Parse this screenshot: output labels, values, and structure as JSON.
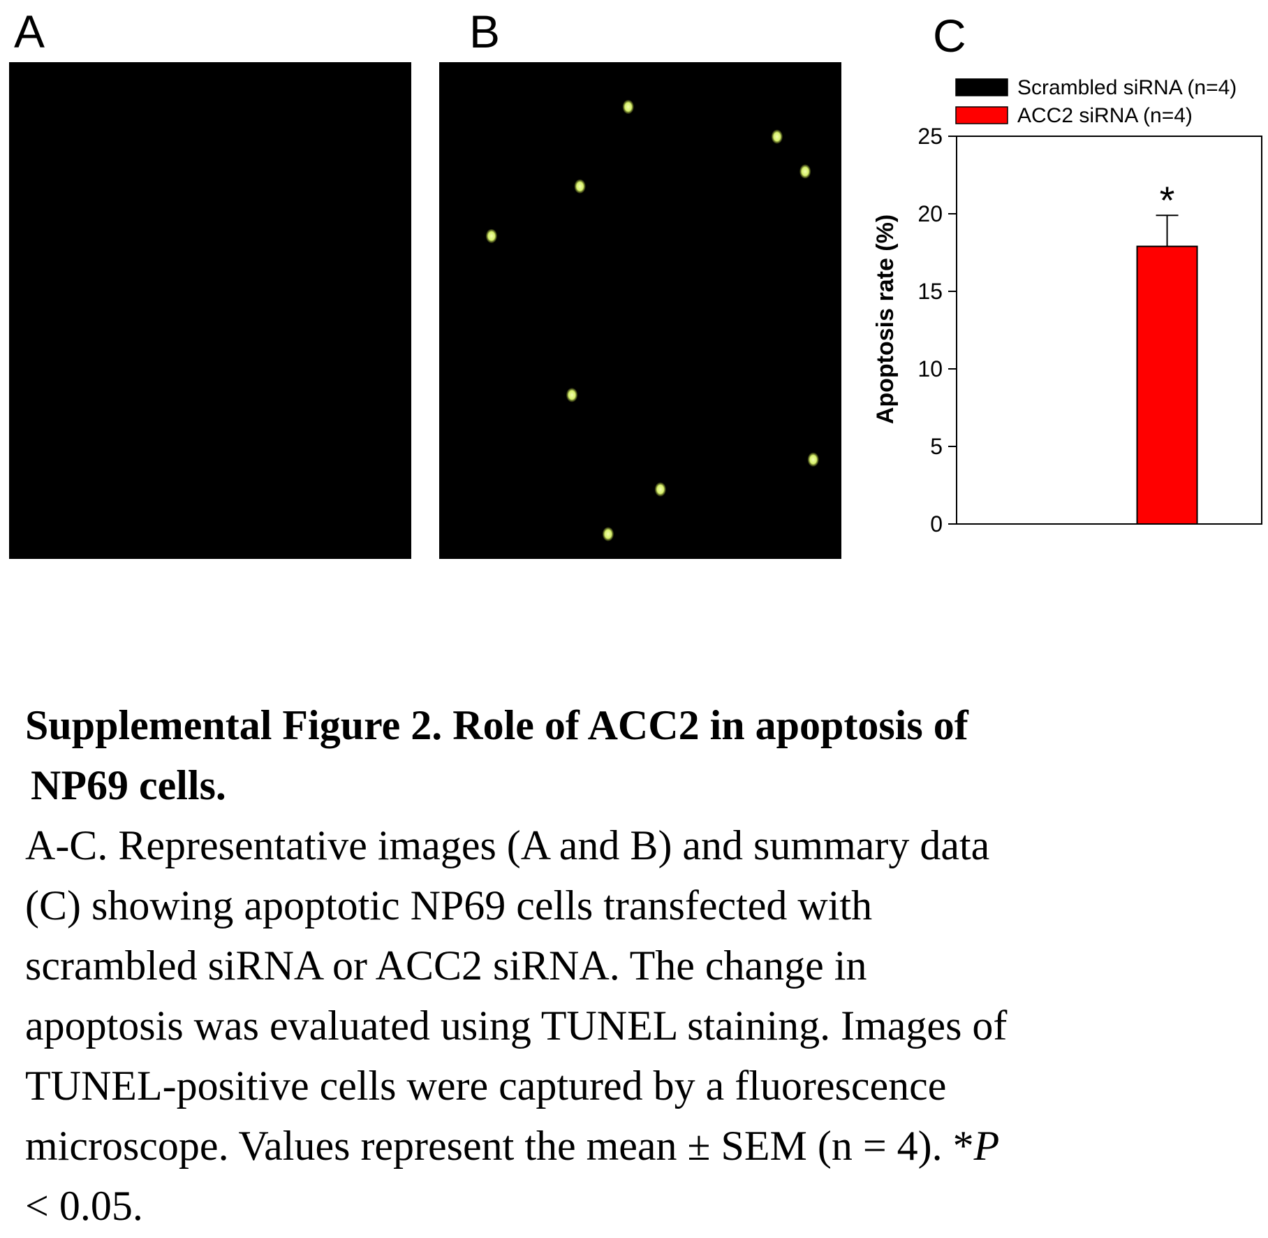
{
  "panels": {
    "a_label": "A",
    "b_label": "B",
    "c_label": "C"
  },
  "micrographs": {
    "a": {
      "description": "TUNEL-stained field, scrambled siRNA (no positive cells)",
      "positive_cells": []
    },
    "b": {
      "description": "TUNEL-stained field, ACC2 siRNA",
      "positive_cells": [
        {
          "fx": 0.47,
          "fy": 0.09
        },
        {
          "fx": 0.35,
          "fy": 0.25
        },
        {
          "fx": 0.13,
          "fy": 0.35
        },
        {
          "fx": 0.84,
          "fy": 0.15
        },
        {
          "fx": 0.91,
          "fy": 0.22
        },
        {
          "fx": 0.33,
          "fy": 0.67
        },
        {
          "fx": 0.55,
          "fy": 0.86
        },
        {
          "fx": 0.93,
          "fy": 0.8
        },
        {
          "fx": 0.42,
          "fy": 0.95
        }
      ],
      "cell_color": "#d6f06a"
    }
  },
  "chart_data": {
    "type": "bar",
    "categories": [
      "Scrambled siRNA (n=4)",
      "ACC2 siRNA (n=4)"
    ],
    "values": [
      0,
      17.9
    ],
    "errors": [
      0,
      2.0
    ],
    "colors": [
      "#000000",
      "#ff0000"
    ],
    "significance": [
      "",
      "*"
    ],
    "ylabel": "Apoptosis rate (%)",
    "ylim": [
      0,
      25
    ],
    "yticks": [
      "0",
      "5",
      "10",
      "15",
      "20",
      "25"
    ],
    "legend": [
      {
        "label": "Scrambled siRNA (n=4)",
        "color": "#000000"
      },
      {
        "label": "ACC2 siRNA (n=4)",
        "color": "#ff0000"
      }
    ],
    "legend_position": "top"
  },
  "caption": {
    "title_line1": "Supplemental Figure 2. Role of ACC2 in apoptosis of",
    "title_line2": "NP69 cells.",
    "body_lines": [
      "A-C. Representative images (A and B) and summary data",
      "(C) showing apoptotic NP69 cells transfected with",
      "scrambled siRNA or ACC2 siRNA. The change in",
      "apoptosis was evaluated using TUNEL staining. Images of",
      "TUNEL-positive cells were captured by a fluorescence",
      "microscope. Values represent the mean ± SEM (n = 4). *P",
      "< 0.05."
    ]
  }
}
